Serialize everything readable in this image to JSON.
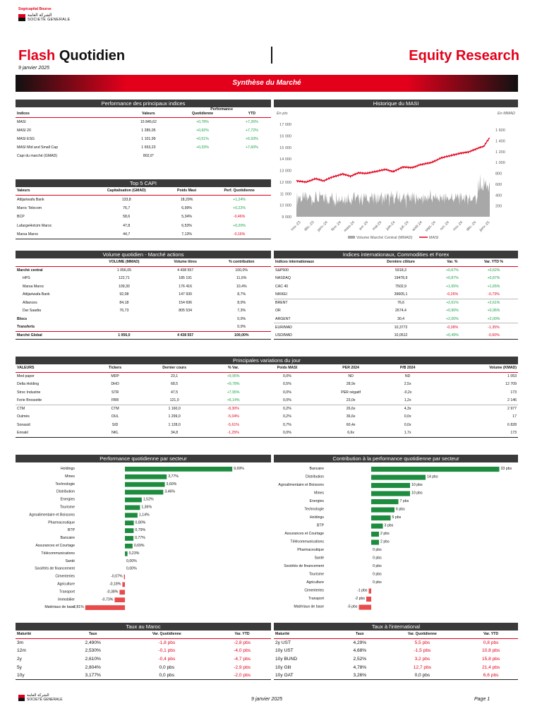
{
  "brand": {
    "name": "Sogécapital Bourse",
    "arabic": "الشركة العامة",
    "sg": "SOCIETE GENERALE"
  },
  "header": {
    "flash_red": "Flash",
    "flash_black": "Quotidien",
    "date": "9 janvier 2025",
    "right": "Equity Research"
  },
  "banner": "Synthèse du Marché",
  "indices": {
    "title": "Performance des principaux indices",
    "perf_label": "Performance",
    "cols": [
      "Indices",
      "Valeurs",
      "Quotidienne",
      "YTD"
    ],
    "rows": [
      [
        "MASI",
        "15 845,62",
        "+0,78%",
        "+7,26%"
      ],
      [
        "MASI 20",
        "1 285,05",
        "+0,92%",
        "+7,72%"
      ],
      [
        "MASI ESG",
        "1 101,99",
        "+0,51%",
        "+6,93%"
      ],
      [
        "MASI Mid and Small Cap",
        "1 653,23",
        "+0,33%",
        "+7,60%"
      ],
      [
        "Capi du marché (GMAD)",
        "802,6*",
        "",
        ""
      ]
    ]
  },
  "top5": {
    "title": "Top 5 CAPI",
    "cols": [
      "Valeurs",
      "Capitalisation (GMAD)",
      "Poids Masi",
      "Perf. Quotidienne"
    ],
    "rows": [
      [
        "Attijariwafa Bank",
        "133,8",
        "18,29%",
        "+1,24%"
      ],
      [
        "Maroc Telecom",
        "76,7",
        "6,99%",
        "+0,22%"
      ],
      [
        "BCP",
        "58,6",
        "5,34%",
        "-0,46%"
      ],
      [
        "LafargeHolcim Maroc",
        "47,8",
        "6,53%",
        "+0,20%"
      ],
      [
        "Marsa Maroc",
        "44,7",
        "7,13%",
        "-0,16%"
      ]
    ]
  },
  "masi_chart": {
    "title": "Historique du MASI",
    "left_unit": "En pts",
    "right_unit": "En MMAD",
    "y_ticks": [
      "17 000",
      "16 000",
      "15 000",
      "14 000",
      "13 000",
      "12 000",
      "11 000",
      "10 000",
      "9 000"
    ],
    "y2_ticks": [
      "1 600",
      "1 400",
      "1 200",
      "1 000",
      "800",
      "600",
      "400",
      "200",
      ""
    ],
    "x_ticks": [
      "nov.-23",
      "déc.-23",
      "janv.-24",
      "févr.-24",
      "mars-24",
      "avr.-24",
      "mai-24",
      "juin-24",
      "juil.-24",
      "août-24",
      "sept.-24",
      "oct.-24",
      "nov.-24",
      "déc.-24",
      "janv.-25"
    ],
    "legend": [
      "Volume Marché Central (MMAD)",
      "MASI"
    ]
  },
  "volume": {
    "title": "Volume quotidien - Marché actions",
    "cols": [
      "",
      "VOLUME (MMAD)",
      "Volume titres",
      "% contribution"
    ],
    "rows": [
      [
        "Marché central",
        "1 056,05",
        "4 438 557",
        "100,0%"
      ],
      [
        "HPS",
        "122,71",
        "185 191",
        "11,6%"
      ],
      [
        "Marsa Maroc",
        "109,30",
        "176 416",
        "10,4%"
      ],
      [
        "Attijariwafa Bank",
        "92,08",
        "147 930",
        "8,7%"
      ],
      [
        "Alliances",
        "84,18",
        "154 696",
        "8,0%"
      ],
      [
        "Dar Saadia",
        "76,73",
        "805 534",
        "7,3%"
      ],
      [
        "Blocs",
        "",
        "",
        "0,0%"
      ],
      [
        "Transferts",
        "",
        "",
        "0,0%"
      ],
      [
        "Marché Global",
        "1 056,0",
        "4 438 557",
        "100,00%"
      ]
    ]
  },
  "intl": {
    "title": "Indices internationaux, Commodities et Forex",
    "cols": [
      "Indices internationaux",
      "Dernière clôture",
      "Var. %",
      "Var. YTD %"
    ],
    "rows": [
      [
        "S&P500",
        "5918,3",
        "+0,67%",
        "+0,62%"
      ],
      [
        "NASDAQ",
        "19478,9",
        "+0,87%",
        "+0,87%"
      ],
      [
        "CAC 40",
        "7502,9",
        "+1,65%",
        "+1,65%"
      ],
      [
        "NIKKEI",
        "39605,1",
        "-0,26%",
        "-0,73%"
      ],
      [
        "BRENT",
        "76,6",
        "+2,61%",
        "+2,61%"
      ],
      [
        "OR",
        "2674,4",
        "+0,90%",
        "+0,96%"
      ],
      [
        "ARGENT",
        "30,4",
        "+2,00%",
        "+2,00%"
      ],
      [
        "EUR/MAD",
        "10,3772",
        "-0,38%",
        "-1,35%"
      ],
      [
        "USD/MAD",
        "10,0512",
        "+0,49%",
        "-0,60%"
      ]
    ]
  },
  "variations": {
    "title": "Principales variations du jour",
    "cols": [
      "VALEURS",
      "Tickers",
      "Dernier cours",
      "% Var.",
      "Poids MASI",
      "PER 2024",
      "P/B 2024",
      "Volume (KMAD)"
    ],
    "rows": [
      [
        "Med paper",
        "MDP",
        "23,1",
        "+9,95%",
        "0,0%",
        "ND",
        "ND",
        "1 053"
      ],
      [
        "Delta Holding",
        "DHO",
        "68,5",
        "+9,78%",
        "0,5%",
        "28,9x",
        "2,5x",
        "12 709"
      ],
      [
        "Stroc Industrie",
        "STR",
        "47,5",
        "+7,95%",
        "0,0%",
        "PER négatif",
        "-0,2x",
        "173"
      ],
      [
        "Ferie Brossette",
        "FBR",
        "121,0",
        "+6,14%",
        "0,0%",
        "23,0x",
        "1,2x",
        "2 146"
      ],
      [
        "CTM",
        "CTM",
        "1 160,0",
        "-8,30%",
        "0,2%",
        "26,6x",
        "4,3x",
        "2 977"
      ],
      [
        "Oulmès",
        "OUL",
        "1 299,0",
        "-5,04%",
        "0,2%",
        "36,6x",
        "0,0x",
        "17"
      ],
      [
        "Sonasid",
        "SID",
        "1 128,0",
        "-5,61%",
        "0,7%",
        "60,4x",
        "0,0x",
        "6 828"
      ],
      [
        "Ennakl",
        "NKL",
        "34,8",
        "-1,25%",
        "0,0%",
        "6,6x",
        "1,7x",
        "173"
      ]
    ]
  },
  "chart_data": [
    {
      "type": "line",
      "title": "Historique du MASI",
      "series": [
        {
          "name": "MASI"
        },
        {
          "name": "Volume Marché Central (MMAD)"
        }
      ],
      "ylim": [
        9000,
        17000
      ],
      "y2lim": [
        0,
        1600
      ]
    },
    {
      "type": "bar",
      "title": "Performance quotidienne par secteur",
      "categories": [
        "Holdings",
        "Mines",
        "Technologie",
        "Distribution",
        "Energies",
        "Tourisme",
        "Agroalimentaire et Boissons",
        "Pharmaceutique",
        "BTP",
        "Bancaire",
        "Assurances et Courtage",
        "Télécommunications",
        "Santé",
        "Sociétés de financement",
        "Cimenteries",
        "Agriculture",
        "Transport",
        "Immobilier",
        "Matériaux de base"
      ],
      "values": [
        9.69,
        3.77,
        3.6,
        3.46,
        1.52,
        1.36,
        1.14,
        0.8,
        0.79,
        0.77,
        0.69,
        0.23,
        0.0,
        0.0,
        -0.07,
        -0.18,
        -0.38,
        -0.73,
        -2.81
      ],
      "labels": [
        "9,69%",
        "3,77%",
        "3,60%",
        "3,46%",
        "1,52%",
        "1,36%",
        "1,14%",
        "0,80%",
        "0,79%",
        "0,77%",
        "0,69%",
        "0,23%",
        "0,00%",
        "0,00%",
        "-0,07%",
        "-0,18%",
        "-0,38%",
        "-0,73%",
        "-2,81%"
      ]
    },
    {
      "type": "bar",
      "title": "Contribution à la performance quotidienne  par secteur",
      "categories": [
        "Bancaire",
        "Distribution",
        "Agroalimentaire et Boissons",
        "Mines",
        "Energies",
        "Technologie",
        "Holdings",
        "BTP",
        "Assurances et Courtage",
        "Télécommunications",
        "Pharmaceutique",
        "Santé",
        "Sociétés de financement",
        "Tourisme",
        "Agriculture",
        "Cimenteries",
        "Transport",
        "Matériaux de base"
      ],
      "values": [
        33,
        14,
        10,
        10,
        7,
        6,
        5,
        3,
        2,
        2,
        0,
        0,
        0,
        0,
        0,
        -1,
        -2,
        -5
      ],
      "labels": [
        "33 pbs",
        "14 pbs",
        "10 pbs",
        "10 pbs",
        "7 pbs",
        "6 pbs",
        "5 pbs",
        "3 pbs",
        "2 pbs",
        "2 pbs",
        "0 pbs",
        "0 pbs",
        "0 pbs",
        "0 pbs",
        "0 pbs",
        "-1 pbs",
        "-2 pbs",
        "-5 pbs"
      ]
    }
  ],
  "taux_maroc": {
    "title": "Taux au Maroc",
    "cols": [
      "Maturité",
      "Taux",
      "Var. Quotidienne",
      "Var. YTD"
    ],
    "rows": [
      [
        "3m",
        "2,490%",
        "-1,8 pbs",
        "-2,8 pbs"
      ],
      [
        "12m",
        "2,530%",
        "-0,1 pbs",
        "-4,0 pbs"
      ],
      [
        "2y",
        "2,610%",
        "-0,4 pbs",
        "-4,7 pbs"
      ],
      [
        "5y",
        "2,804%",
        "0,0 pbs",
        "-2,9 pbs"
      ],
      [
        "10y",
        "3,177%",
        "0,0 pbs",
        "-2,0 pbs"
      ]
    ]
  },
  "taux_intl": {
    "title": "Taux à l'international",
    "cols": [
      "Maturité",
      "Taux",
      "Var. Quotidienne",
      "Var. YTD"
    ],
    "rows": [
      [
        "2y UST",
        "4,29%",
        "5,5 pbs",
        "0,8 pbs"
      ],
      [
        "10y UST",
        "4,68%",
        "-1,5 pbs",
        "10,8 pbs"
      ],
      [
        "10y BUND",
        "2,52%",
        "3,2 pbs",
        "15,8 pbs"
      ],
      [
        "10y Gilt",
        "4,78%",
        "12,7 pbs",
        "21,4 pbs"
      ],
      [
        "10y OAT",
        "3,26%",
        "0,0 pbs",
        "6,6 pbs"
      ]
    ]
  },
  "footer": {
    "date": "9 janvier 2025",
    "page": "Page 1"
  },
  "colors": {
    "red": "#e3001b",
    "green": "#18a04a",
    "bar_green": "#1e8c3f",
    "bar_red": "#e84b4b",
    "dark": "#3a3a3a"
  }
}
